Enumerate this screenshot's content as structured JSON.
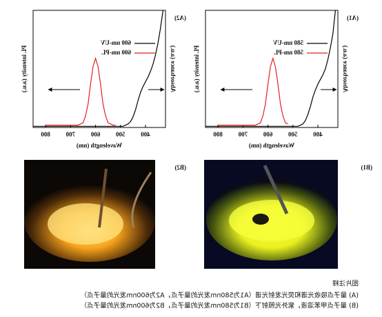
{
  "chart_data": [
    {
      "type": "line",
      "panel": "(A1)",
      "x_label": "Wavelength (nm)",
      "y_label": "Absorbance (a.u.)",
      "y2_label": "PL intensity (a.u.)",
      "xlim": [
        320,
        850
      ],
      "xticks": [
        400,
        500,
        600,
        700,
        800
      ],
      "ylim": [
        0,
        1
      ],
      "x": [
        330,
        340,
        350,
        360,
        370,
        380,
        390,
        400,
        410,
        420,
        430,
        440,
        450,
        460,
        470,
        480,
        490,
        500,
        510,
        520,
        530,
        540,
        550,
        560,
        570,
        580,
        590,
        600,
        610,
        620,
        630,
        640,
        650,
        660,
        670,
        680,
        690,
        700,
        710,
        720,
        730,
        740,
        750,
        760,
        770,
        780,
        790,
        800,
        810,
        820,
        830,
        840,
        850
      ],
      "series": [
        {
          "name": "580 nm-UV",
          "color": "#000000",
          "values": [
            1.0,
            0.8,
            0.68,
            0.58,
            0.5,
            0.45,
            0.41,
            0.37,
            0.32,
            0.26,
            0.18,
            0.11,
            0.06,
            0.03,
            0.02,
            0.01,
            0.01,
            0.01,
            0.01,
            0.01,
            0.01,
            0.01,
            0.01,
            0.01,
            0.01,
            0.01,
            0.01,
            0.01,
            0.01,
            0.01,
            0.01,
            0.01,
            0.01,
            0.01,
            0.01,
            0.01,
            0.01,
            0.01,
            0.01,
            0.01,
            0.01,
            0.01,
            0.01,
            0.01,
            0.01,
            0.01,
            0.01,
            0.01,
            0.01,
            0.01,
            0.01,
            0.01,
            0.01
          ]
        },
        {
          "name": "580 nm-PL",
          "color": "#e0201c",
          "values": [
            null,
            null,
            null,
            null,
            null,
            null,
            null,
            null,
            null,
            null,
            null,
            null,
            null,
            null,
            null,
            null,
            null,
            null,
            null,
            0.03,
            0.04,
            0.1,
            0.2,
            0.37,
            0.52,
            0.59,
            0.52,
            0.37,
            0.2,
            0.1,
            0.04,
            0.03,
            0.02,
            0.02,
            0.02,
            0.02,
            0.02,
            0.02,
            0.02,
            0.02,
            0.02,
            0.02,
            0.02,
            0.02,
            0.02,
            0.02,
            0.02,
            0.02,
            null,
            null,
            null,
            null,
            null
          ]
        }
      ]
    },
    {
      "type": "line",
      "panel": "(A2)",
      "x_label": "Wavelength (nm)",
      "y_label": "Absorbance (a.u.)",
      "y2_label": "PL intensity (a.u.)",
      "xlim": [
        320,
        850
      ],
      "xticks": [
        400,
        500,
        600,
        700,
        800
      ],
      "ylim": [
        0,
        1
      ],
      "x": [
        330,
        340,
        350,
        360,
        370,
        380,
        390,
        400,
        410,
        420,
        430,
        440,
        450,
        460,
        470,
        480,
        490,
        500,
        510,
        520,
        530,
        540,
        550,
        560,
        570,
        580,
        590,
        600,
        610,
        620,
        630,
        640,
        650,
        660,
        670,
        680,
        690,
        700,
        710,
        720,
        730,
        740,
        750,
        760,
        770,
        780,
        790,
        800,
        810,
        820,
        830,
        840,
        850
      ],
      "series": [
        {
          "name": "600 nm-UV",
          "color": "#000000",
          "values": [
            1.0,
            0.85,
            0.72,
            0.62,
            0.54,
            0.48,
            0.43,
            0.39,
            0.35,
            0.3,
            0.23,
            0.15,
            0.09,
            0.05,
            0.03,
            0.02,
            0.01,
            0.01,
            0.01,
            0.01,
            0.01,
            0.01,
            0.01,
            0.01,
            0.01,
            0.01,
            0.01,
            0.01,
            0.01,
            0.01,
            0.01,
            0.01,
            0.01,
            0.01,
            0.01,
            0.01,
            0.01,
            0.01,
            0.01,
            0.01,
            0.01,
            0.01,
            0.01,
            0.01,
            0.01,
            0.01,
            0.01,
            0.01,
            0.01,
            0.01,
            0.01,
            0.01,
            0.01
          ]
        },
        {
          "name": "600 nm-PL",
          "color": "#e0201c",
          "values": [
            null,
            null,
            null,
            null,
            null,
            null,
            null,
            null,
            null,
            null,
            null,
            null,
            null,
            null,
            null,
            null,
            null,
            null,
            null,
            0.02,
            0.02,
            0.03,
            0.04,
            0.1,
            0.2,
            0.37,
            0.52,
            0.59,
            0.52,
            0.37,
            0.2,
            0.1,
            0.04,
            0.03,
            0.02,
            0.02,
            0.02,
            0.02,
            0.02,
            0.02,
            0.02,
            0.02,
            0.02,
            0.02,
            0.02,
            0.02,
            0.02,
            0.02,
            null,
            null,
            null,
            null,
            null
          ]
        }
      ]
    }
  ],
  "photos": [
    "(B1)",
    "(B2)"
  ],
  "caption": {
    "title": "图片注释",
    "lines": [
      "(A) 量子点吸收光谱和荧光发射光谱（A1为580nm发光的量子点，A2为600nm发光的量子点）",
      "(B) 量子点甲苯溶液，紫外光照射下（B1为580nm发光的量子点，B2为600nm发光的量子点）"
    ]
  }
}
